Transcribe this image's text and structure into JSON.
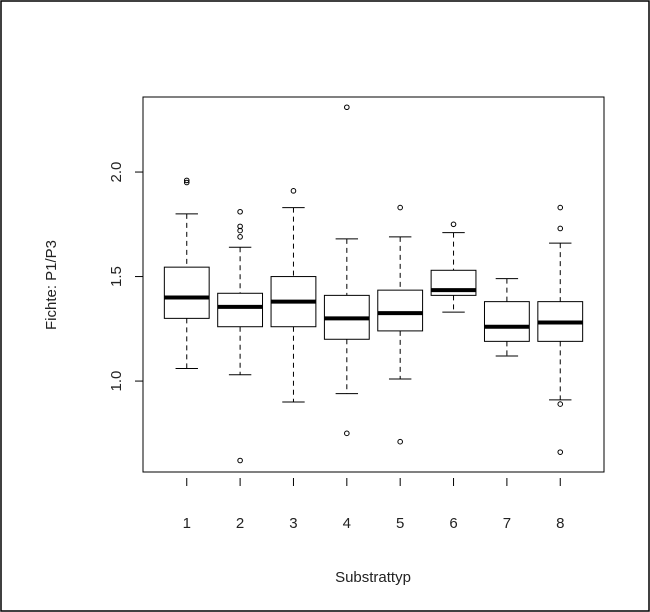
{
  "chart_data": {
    "type": "boxplot",
    "x_label": "Substrattyp",
    "y_label": "Fichte: P1/P3",
    "categories": [
      "1",
      "2",
      "3",
      "4",
      "5",
      "6",
      "7",
      "8"
    ],
    "boxes": [
      {
        "whisker_low": 1.06,
        "q1": 1.3,
        "median": 1.4,
        "q3": 1.545,
        "whisker_high": 1.8,
        "outliers": [
          1.96,
          1.95
        ]
      },
      {
        "whisker_low": 1.03,
        "q1": 1.26,
        "median": 1.355,
        "q3": 1.42,
        "whisker_high": 1.64,
        "outliers": [
          1.81,
          1.74,
          1.72,
          1.69,
          0.62
        ]
      },
      {
        "whisker_low": 0.9,
        "q1": 1.26,
        "median": 1.38,
        "q3": 1.5,
        "whisker_high": 1.83,
        "outliers": [
          1.91
        ]
      },
      {
        "whisker_low": 0.94,
        "q1": 1.2,
        "median": 1.3,
        "q3": 1.41,
        "whisker_high": 1.68,
        "outliers": [
          2.31,
          0.75
        ]
      },
      {
        "whisker_low": 1.01,
        "q1": 1.24,
        "median": 1.325,
        "q3": 1.435,
        "whisker_high": 1.69,
        "outliers": [
          1.83,
          0.71
        ]
      },
      {
        "whisker_low": 1.33,
        "q1": 1.41,
        "median": 1.435,
        "q3": 1.53,
        "whisker_high": 1.71,
        "outliers": [
          1.75
        ]
      },
      {
        "whisker_low": 1.12,
        "q1": 1.19,
        "median": 1.26,
        "q3": 1.38,
        "whisker_high": 1.49,
        "outliers": []
      },
      {
        "whisker_low": 0.91,
        "q1": 1.19,
        "median": 1.28,
        "q3": 1.38,
        "whisker_high": 1.66,
        "outliers": [
          1.83,
          1.73,
          0.89,
          0.66
        ]
      }
    ],
    "color": "#000000",
    "ylim": [
      0.565,
      2.359
    ],
    "yticks": [
      {
        "value": 1,
        "label": "1.0"
      },
      1.5,
      {
        "value": 2,
        "label": "2.0"
      }
    ]
  }
}
